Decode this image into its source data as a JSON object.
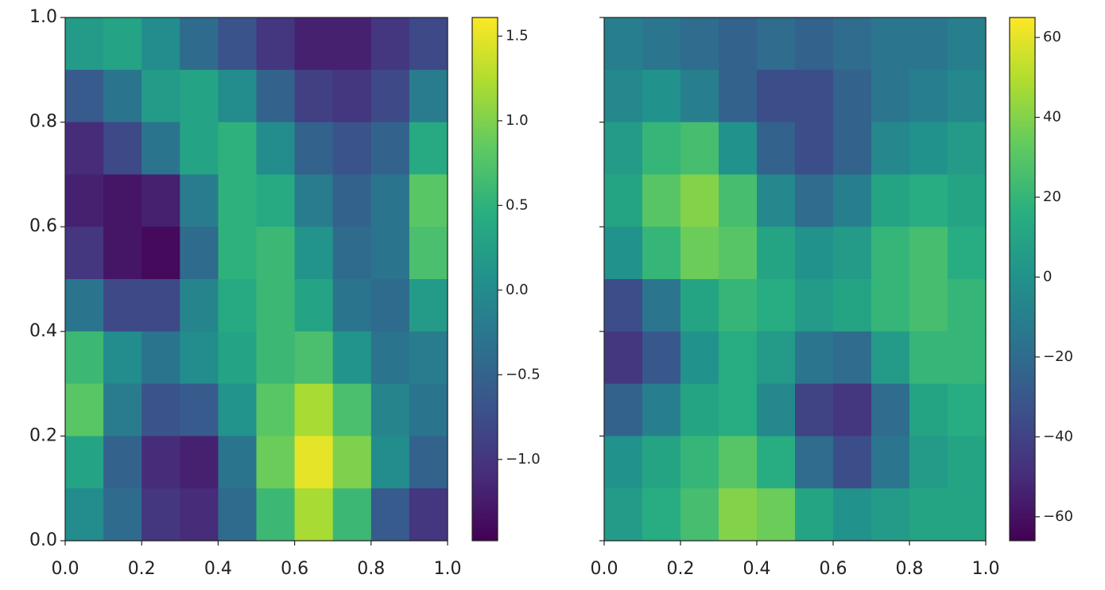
{
  "chart_data": [
    {
      "type": "heatmap",
      "cmap": "viridis",
      "origin": "upper",
      "xlim": [
        0,
        1
      ],
      "ylim": [
        0,
        1
      ],
      "xticks": [
        {
          "value": 0,
          "label": "0.0"
        },
        0.2,
        0.4,
        0.6,
        0.8,
        {
          "value": 1,
          "label": "1.0"
        }
      ],
      "yticks": [
        {
          "value": 0,
          "label": "0.0"
        },
        0.2,
        0.4,
        0.6,
        0.8,
        {
          "value": 1,
          "label": "1.0"
        }
      ],
      "yticklabels": true,
      "clim": [
        -1.48,
        1.61
      ],
      "cticks": [
        {
          "value": -1,
          "label": "−1.0"
        },
        {
          "value": -0.5,
          "label": "−0.5"
        },
        {
          "value": 0,
          "label": "0.0"
        },
        0.5,
        {
          "value": 1,
          "label": "1.0"
        },
        1.5
      ],
      "values": [
        [
          0.2,
          0.3,
          0.0,
          -0.4,
          -0.7,
          -1.0,
          -1.2,
          -1.2,
          -1.0,
          -0.8
        ],
        [
          -0.6,
          -0.3,
          0.2,
          0.3,
          0.0,
          -0.5,
          -0.9,
          -1.0,
          -0.8,
          -0.2
        ],
        [
          -1.1,
          -0.8,
          -0.3,
          0.3,
          0.5,
          0.0,
          -0.5,
          -0.7,
          -0.5,
          0.4
        ],
        [
          -1.2,
          -1.3,
          -1.2,
          -0.2,
          0.5,
          0.4,
          -0.2,
          -0.5,
          -0.3,
          0.8
        ],
        [
          -1.0,
          -1.3,
          -1.4,
          -0.4,
          0.5,
          0.6,
          0.1,
          -0.4,
          -0.3,
          0.7
        ],
        [
          -0.3,
          -0.8,
          -0.8,
          -0.1,
          0.4,
          0.6,
          0.3,
          -0.3,
          -0.4,
          0.2
        ],
        [
          0.6,
          0.0,
          -0.3,
          0.0,
          0.3,
          0.6,
          0.7,
          0.1,
          -0.3,
          -0.2
        ],
        [
          0.8,
          -0.2,
          -0.7,
          -0.6,
          0.1,
          0.8,
          1.2,
          0.7,
          -0.1,
          -0.3
        ],
        [
          0.3,
          -0.5,
          -1.1,
          -1.2,
          -0.3,
          0.9,
          1.5,
          1.0,
          0.0,
          -0.5
        ],
        [
          0.0,
          -0.4,
          -1.0,
          -1.1,
          -0.4,
          0.6,
          1.2,
          0.6,
          -0.6,
          -1.0
        ]
      ]
    },
    {
      "type": "heatmap",
      "cmap": "viridis",
      "origin": "upper",
      "xlim": [
        0,
        1
      ],
      "ylim": [
        0,
        1
      ],
      "xticks": [
        {
          "value": 0,
          "label": "0.0"
        },
        0.2,
        0.4,
        0.6,
        0.8,
        {
          "value": 1,
          "label": "1.0"
        }
      ],
      "yticks": [
        0,
        0.2,
        0.4,
        0.6,
        0.8,
        1
      ],
      "yticklabels": false,
      "clim": [
        -66,
        65
      ],
      "cticks": [
        {
          "value": -60,
          "label": "−60"
        },
        {
          "value": -40,
          "label": "−40"
        },
        {
          "value": -20,
          "label": "−20"
        },
        0,
        20,
        40,
        60
      ],
      "values": [
        [
          -10,
          -15,
          -20,
          -25,
          -20,
          -25,
          -20,
          -15,
          -15,
          -10
        ],
        [
          -5,
          0,
          -10,
          -25,
          -35,
          -35,
          -25,
          -15,
          -10,
          -5
        ],
        [
          5,
          20,
          25,
          0,
          -25,
          -35,
          -25,
          -5,
          0,
          5
        ],
        [
          10,
          30,
          40,
          25,
          -5,
          -20,
          -10,
          10,
          15,
          10
        ],
        [
          0,
          20,
          35,
          30,
          10,
          0,
          5,
          20,
          25,
          15
        ],
        [
          -35,
          -15,
          10,
          20,
          15,
          5,
          10,
          20,
          25,
          20
        ],
        [
          -45,
          -30,
          0,
          15,
          5,
          -15,
          -20,
          5,
          20,
          20
        ],
        [
          -25,
          -10,
          10,
          15,
          -5,
          -40,
          -45,
          -20,
          10,
          15
        ],
        [
          0,
          10,
          20,
          30,
          15,
          -20,
          -35,
          -15,
          5,
          10
        ],
        [
          5,
          15,
          25,
          40,
          35,
          10,
          0,
          5,
          10,
          10
        ]
      ]
    }
  ]
}
